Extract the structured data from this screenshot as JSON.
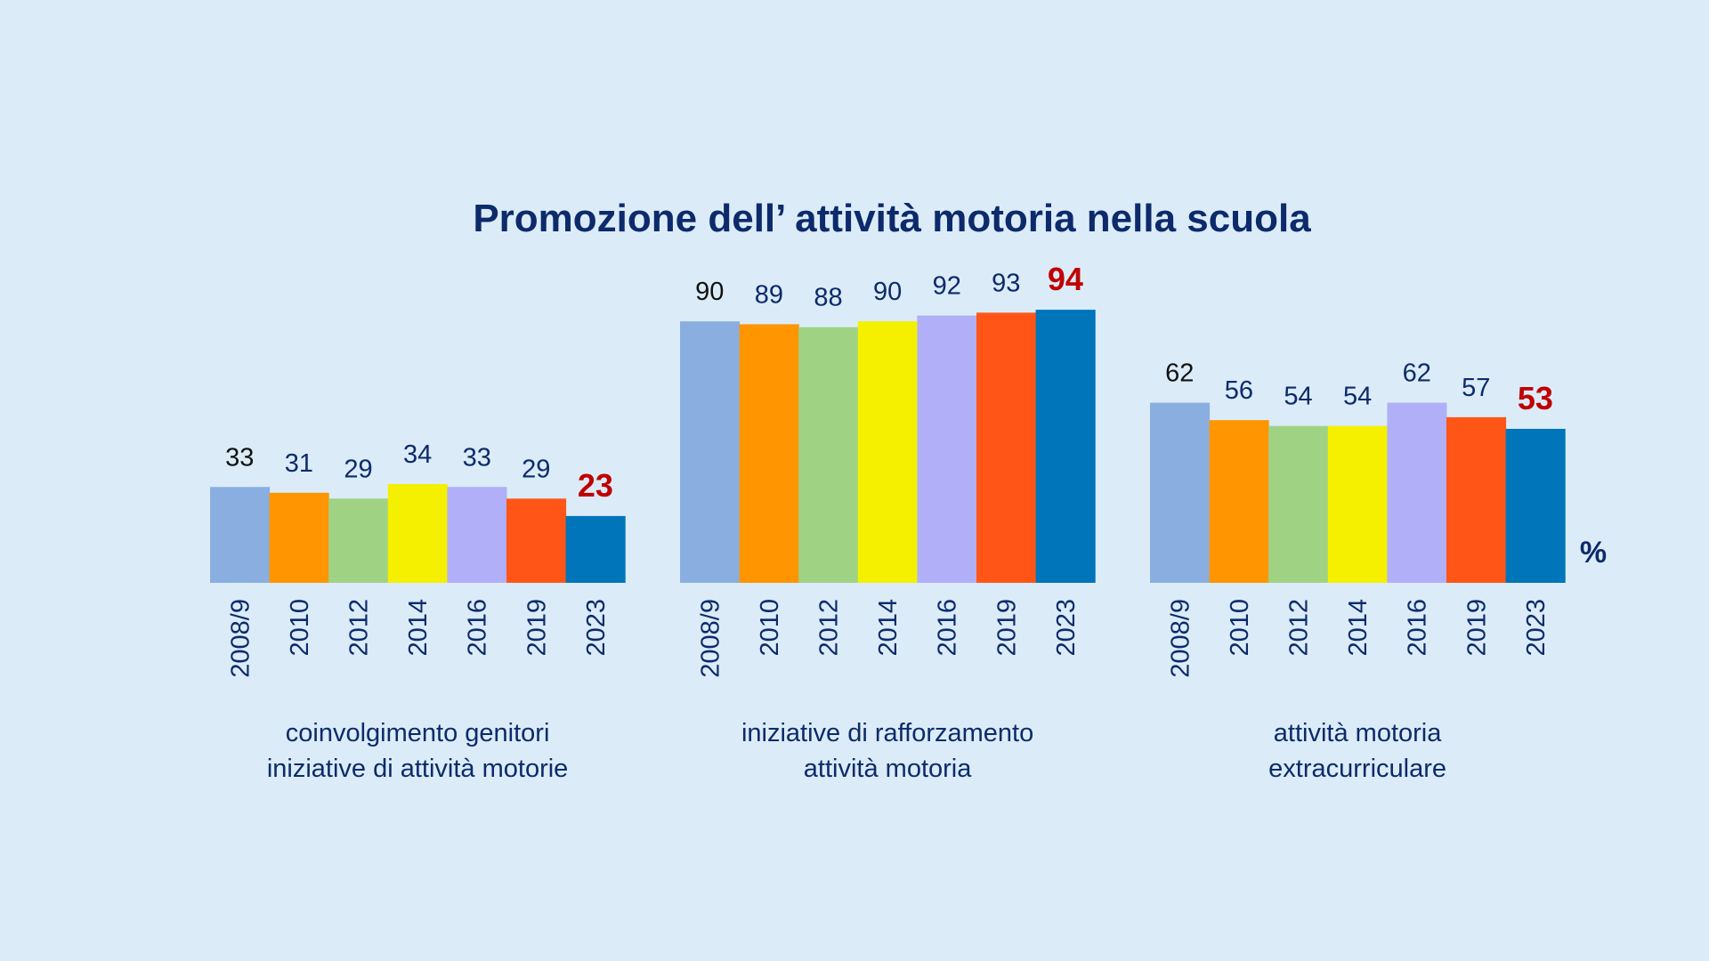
{
  "chart_data": {
    "type": "bar",
    "title": "Promozione dell’ attività motoria nella scuola",
    "unit": "%",
    "categories": [
      "2008/9",
      "2010",
      "2012",
      "2014",
      "2016",
      "2019",
      "2023"
    ],
    "colors": [
      "#8aaedf",
      "#ff9500",
      "#a0d284",
      "#f5f000",
      "#b0aff8",
      "#ff5618",
      "#0075b9"
    ],
    "highlight_color": "#c00000",
    "ylim": [
      0,
      100
    ],
    "panels": [
      {
        "name": "coinvolgimento genitori iniziative di attività motorie",
        "caption_lines": [
          "coinvolgimento genitori",
          "iniziative di attività motorie"
        ],
        "values": [
          33,
          31,
          29,
          34,
          33,
          29,
          23
        ]
      },
      {
        "name": "iniziative di rafforzamento attività motoria",
        "caption_lines": [
          "iniziative di rafforzamento",
          "attività motoria"
        ],
        "values": [
          90,
          89,
          88,
          90,
          92,
          93,
          94
        ]
      },
      {
        "name": "attività motoria extracurriculare",
        "caption_lines": [
          "attività motoria",
          "extracurriculare"
        ],
        "values": [
          62,
          56,
          54,
          54,
          62,
          57,
          53
        ]
      }
    ]
  }
}
